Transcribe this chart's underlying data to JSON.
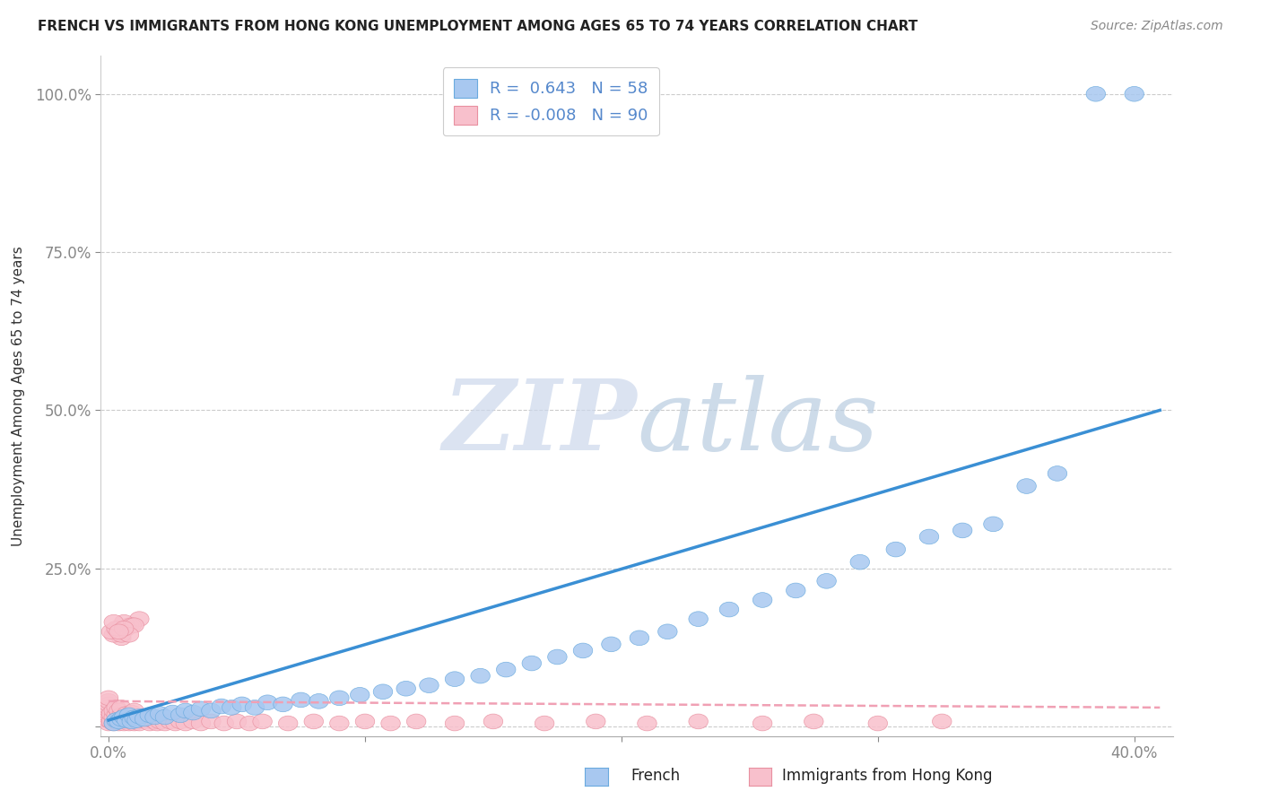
{
  "title": "FRENCH VS IMMIGRANTS FROM HONG KONG UNEMPLOYMENT AMONG AGES 65 TO 74 YEARS CORRELATION CHART",
  "source": "Source: ZipAtlas.com",
  "ylabel": "Unemployment Among Ages 65 to 74 years",
  "xlim": [
    -0.003,
    0.415
  ],
  "ylim": [
    -0.015,
    1.06
  ],
  "x_ticks": [
    0.0,
    0.1,
    0.2,
    0.3,
    0.4
  ],
  "x_tick_labels": [
    "0.0%",
    "",
    "",
    "",
    "40.0%"
  ],
  "y_ticks": [
    0.0,
    0.25,
    0.5,
    0.75,
    1.0
  ],
  "y_tick_labels": [
    "",
    "25.0%",
    "50.0%",
    "75.0%",
    "100.0%"
  ],
  "R_french": 0.643,
  "N_french": 58,
  "R_hk": -0.008,
  "N_hk": 90,
  "french_color": "#a8c8f0",
  "french_edge_color": "#6aaade",
  "hk_color": "#f8c0cc",
  "hk_edge_color": "#e890a0",
  "trend_french_color": "#3a8fd4",
  "trend_hk_color": "#f0a0b4",
  "watermark_zip_color": "#ccd8ec",
  "watermark_atlas_color": "#b8cce0",
  "legend_label_french": "French",
  "legend_label_hk": "Immigrants from Hong Kong",
  "tick_color": "#5588cc",
  "french_x": [
    0.002,
    0.003,
    0.004,
    0.005,
    0.006,
    0.007,
    0.008,
    0.009,
    0.01,
    0.011,
    0.012,
    0.014,
    0.016,
    0.018,
    0.02,
    0.022,
    0.025,
    0.028,
    0.03,
    0.033,
    0.036,
    0.04,
    0.044,
    0.048,
    0.052,
    0.057,
    0.062,
    0.068,
    0.075,
    0.082,
    0.09,
    0.098,
    0.107,
    0.116,
    0.125,
    0.135,
    0.145,
    0.155,
    0.165,
    0.175,
    0.185,
    0.196,
    0.207,
    0.218,
    0.23,
    0.242,
    0.255,
    0.268,
    0.28,
    0.293,
    0.307,
    0.32,
    0.333,
    0.345,
    0.358,
    0.37,
    0.385,
    0.4
  ],
  "french_y": [
    0.005,
    0.01,
    0.008,
    0.012,
    0.015,
    0.01,
    0.018,
    0.008,
    0.014,
    0.01,
    0.016,
    0.012,
    0.018,
    0.015,
    0.02,
    0.015,
    0.022,
    0.018,
    0.025,
    0.022,
    0.028,
    0.025,
    0.032,
    0.03,
    0.035,
    0.03,
    0.038,
    0.035,
    0.042,
    0.04,
    0.045,
    0.05,
    0.055,
    0.06,
    0.065,
    0.075,
    0.08,
    0.09,
    0.1,
    0.11,
    0.12,
    0.13,
    0.14,
    0.15,
    0.17,
    0.185,
    0.2,
    0.215,
    0.23,
    0.26,
    0.28,
    0.3,
    0.31,
    0.32,
    0.38,
    0.4,
    1.0,
    1.0
  ],
  "hk_x": [
    0.0,
    0.0,
    0.0,
    0.0,
    0.0,
    0.0,
    0.0,
    0.0,
    0.0,
    0.0,
    0.001,
    0.001,
    0.002,
    0.002,
    0.002,
    0.003,
    0.003,
    0.003,
    0.004,
    0.004,
    0.004,
    0.005,
    0.005,
    0.005,
    0.006,
    0.006,
    0.007,
    0.007,
    0.008,
    0.008,
    0.009,
    0.009,
    0.01,
    0.01,
    0.01,
    0.011,
    0.012,
    0.013,
    0.014,
    0.015,
    0.016,
    0.017,
    0.018,
    0.019,
    0.02,
    0.022,
    0.024,
    0.026,
    0.028,
    0.03,
    0.033,
    0.036,
    0.04,
    0.045,
    0.05,
    0.055,
    0.06,
    0.07,
    0.08,
    0.09,
    0.1,
    0.11,
    0.12,
    0.135,
    0.15,
    0.17,
    0.19,
    0.21,
    0.23,
    0.255,
    0.275,
    0.3,
    0.325,
    0.005,
    0.008,
    0.012,
    0.003,
    0.007,
    0.002,
    0.006,
    0.004,
    0.009,
    0.001,
    0.005,
    0.01,
    0.003,
    0.008,
    0.002,
    0.006,
    0.004
  ],
  "hk_y": [
    0.005,
    0.01,
    0.015,
    0.018,
    0.022,
    0.026,
    0.03,
    0.035,
    0.04,
    0.045,
    0.008,
    0.02,
    0.005,
    0.015,
    0.025,
    0.008,
    0.018,
    0.03,
    0.005,
    0.015,
    0.025,
    0.008,
    0.018,
    0.03,
    0.005,
    0.015,
    0.008,
    0.02,
    0.005,
    0.018,
    0.008,
    0.022,
    0.005,
    0.015,
    0.025,
    0.008,
    0.005,
    0.01,
    0.015,
    0.008,
    0.005,
    0.01,
    0.008,
    0.005,
    0.008,
    0.005,
    0.008,
    0.005,
    0.008,
    0.005,
    0.008,
    0.005,
    0.008,
    0.005,
    0.008,
    0.005,
    0.008,
    0.005,
    0.008,
    0.005,
    0.008,
    0.005,
    0.008,
    0.005,
    0.008,
    0.005,
    0.008,
    0.005,
    0.008,
    0.005,
    0.008,
    0.005,
    0.008,
    0.14,
    0.16,
    0.17,
    0.15,
    0.155,
    0.145,
    0.165,
    0.155,
    0.16,
    0.15,
    0.145,
    0.16,
    0.155,
    0.145,
    0.165,
    0.155,
    0.15
  ]
}
